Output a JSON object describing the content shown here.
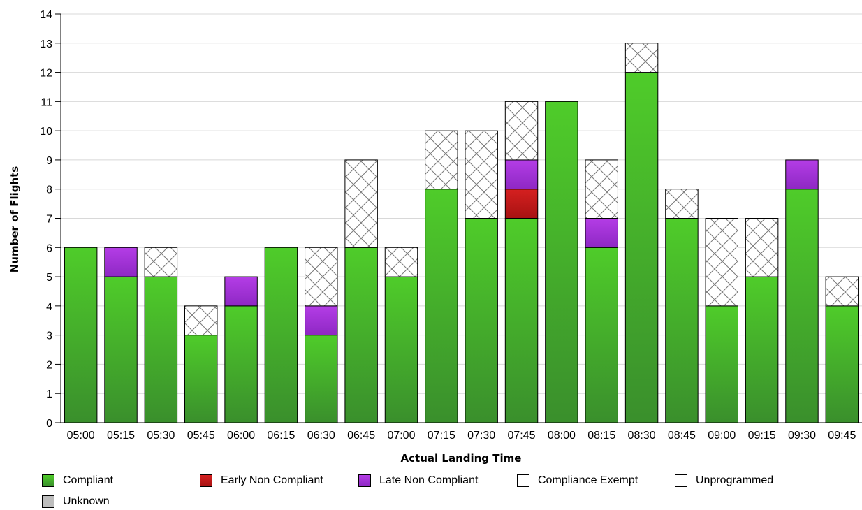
{
  "chart_data": {
    "type": "bar",
    "stacked": true,
    "xlabel": "Actual Landing Time",
    "ylabel": "Number of Flights",
    "ylim": [
      0,
      14
    ],
    "yticks": [
      0,
      1,
      2,
      3,
      4,
      5,
      6,
      7,
      8,
      9,
      10,
      11,
      12,
      13,
      14
    ],
    "grid": true,
    "legend_position": "bottom",
    "categories": [
      "05:00",
      "05:15",
      "05:30",
      "05:45",
      "06:00",
      "06:15",
      "06:30",
      "06:45",
      "07:00",
      "07:15",
      "07:30",
      "07:45",
      "08:00",
      "08:15",
      "08:30",
      "08:45",
      "09:00",
      "09:15",
      "09:30",
      "09:45"
    ],
    "series": [
      {
        "name": "Compliant",
        "color": "#3fae2a",
        "pattern": "gradient",
        "values": [
          6,
          5,
          5,
          3,
          4,
          6,
          3,
          6,
          5,
          8,
          7,
          7,
          11,
          6,
          12,
          7,
          4,
          5,
          8,
          4
        ]
      },
      {
        "name": "Early Non Compliant",
        "color": "#cc1a1a",
        "pattern": "gradient",
        "values": [
          0,
          0,
          0,
          0,
          0,
          0,
          0,
          0,
          0,
          0,
          0,
          1,
          0,
          0,
          0,
          0,
          0,
          0,
          0,
          0
        ]
      },
      {
        "name": "Late Non Compliant",
        "color": "#a32fd8",
        "pattern": "gradient",
        "values": [
          0,
          1,
          0,
          0,
          1,
          0,
          1,
          0,
          0,
          0,
          0,
          1,
          0,
          1,
          0,
          0,
          0,
          0,
          1,
          0
        ]
      },
      {
        "name": "Compliance Exempt",
        "color": "#ffffff",
        "pattern": "crosshatch",
        "values": [
          0,
          0,
          1,
          1,
          0,
          0,
          2,
          3,
          1,
          2,
          3,
          2,
          0,
          2,
          1,
          1,
          3,
          2,
          0,
          1
        ]
      },
      {
        "name": "Unprogrammed",
        "color": "#ffffff",
        "pattern": "none",
        "values": [
          0,
          0,
          0,
          0,
          0,
          0,
          0,
          0,
          0,
          0,
          0,
          0,
          0,
          0,
          0,
          0,
          0,
          0,
          0,
          0
        ]
      },
      {
        "name": "Unknown",
        "color": "#bdbdbd",
        "pattern": "none",
        "values": [
          0,
          0,
          0,
          0,
          0,
          0,
          0,
          0,
          0,
          0,
          0,
          0,
          0,
          0,
          0,
          0,
          0,
          0,
          0,
          0
        ]
      }
    ]
  }
}
